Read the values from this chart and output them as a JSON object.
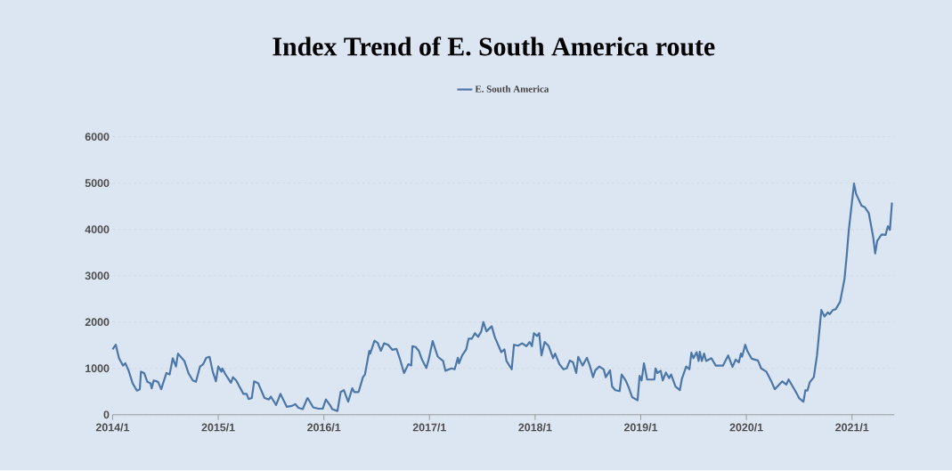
{
  "chart_data": {
    "type": "line",
    "title": "Index Trend of E. South America route",
    "x": [
      "2014-01-01",
      "2014-01-12",
      "2014-01-23",
      "2014-02-06",
      "2014-02-14",
      "2014-02-25",
      "2014-03-11",
      "2014-03-26",
      "2014-04-05",
      "2014-04-09",
      "2014-04-20",
      "2014-05-01",
      "2014-05-12",
      "2014-05-16",
      "2014-05-23",
      "2014-06-07",
      "2014-06-18",
      "2014-07-06",
      "2014-07-17",
      "2014-07-28",
      "2014-08-08",
      "2014-08-15",
      "2014-09-06",
      "2014-09-20",
      "2014-10-05",
      "2014-10-16",
      "2014-10-30",
      "2014-11-10",
      "2014-11-21",
      "2014-12-02",
      "2014-12-13",
      "2014-12-24",
      "2015-01-01",
      "2015-01-12",
      "2015-01-15",
      "2015-01-26",
      "2015-02-14",
      "2015-02-21",
      "2015-03-04",
      "2015-03-15",
      "2015-03-29",
      "2015-04-09",
      "2015-04-16",
      "2015-04-27",
      "2015-05-05",
      "2015-05-19",
      "2015-05-30",
      "2015-06-10",
      "2015-06-25",
      "2015-07-02",
      "2015-07-13",
      "2015-07-20",
      "2015-08-04",
      "2015-08-26",
      "2015-09-13",
      "2015-09-24",
      "2015-10-05",
      "2015-10-20",
      "2015-11-03",
      "2015-11-06",
      "2015-11-25",
      "2015-12-13",
      "2015-12-28",
      "2016-01-08",
      "2016-01-23",
      "2016-01-30",
      "2016-02-17",
      "2016-02-28",
      "2016-03-11",
      "2016-03-26",
      "2016-04-09",
      "2016-04-16",
      "2016-05-01",
      "2016-05-16",
      "2016-05-23",
      "2016-06-07",
      "2016-06-10",
      "2016-06-25",
      "2016-07-06",
      "2016-07-17",
      "2016-07-28",
      "2016-08-11",
      "2016-08-26",
      "2016-09-09",
      "2016-09-20",
      "2016-10-05",
      "2016-10-20",
      "2016-10-30",
      "2016-11-03",
      "2016-11-14",
      "2016-11-25",
      "2016-12-06",
      "2016-12-21",
      "2016-12-28",
      "2017-01-12",
      "2017-01-26",
      "2017-01-30",
      "2017-02-17",
      "2017-02-25",
      "2017-03-18",
      "2017-03-29",
      "2017-04-09",
      "2017-04-13",
      "2017-04-24",
      "2017-05-08",
      "2017-05-16",
      "2017-05-27",
      "2017-06-07",
      "2017-06-18",
      "2017-06-29",
      "2017-07-06",
      "2017-07-17",
      "2017-08-04",
      "2017-08-15",
      "2017-09-06",
      "2017-09-17",
      "2017-09-24",
      "2017-10-12",
      "2017-10-20",
      "2017-11-03",
      "2017-11-17",
      "2017-12-02",
      "2017-12-13",
      "2017-12-21",
      "2017-12-28",
      "2018-01-08",
      "2018-01-15",
      "2018-01-23",
      "2018-02-03",
      "2018-02-17",
      "2018-03-04",
      "2018-03-11",
      "2018-03-26",
      "2018-04-09",
      "2018-04-20",
      "2018-05-01",
      "2018-05-12",
      "2018-05-23",
      "2018-05-30",
      "2018-06-14",
      "2018-06-29",
      "2018-07-10",
      "2018-07-20",
      "2018-07-28",
      "2018-08-11",
      "2018-08-26",
      "2018-09-02",
      "2018-09-17",
      "2018-09-24",
      "2018-10-05",
      "2018-10-20",
      "2018-10-27",
      "2018-11-10",
      "2018-11-21",
      "2018-12-02",
      "2018-12-21",
      "2018-12-28",
      "2019-01-04",
      "2019-01-12",
      "2019-01-23",
      "2019-02-17",
      "2019-02-21",
      "2019-02-28",
      "2019-03-11",
      "2019-03-18",
      "2019-03-29",
      "2019-04-09",
      "2019-04-16",
      "2019-05-01",
      "2019-05-16",
      "2019-05-23",
      "2019-06-07",
      "2019-06-18",
      "2019-06-25",
      "2019-07-02",
      "2019-07-13",
      "2019-07-20",
      "2019-07-24",
      "2019-07-31",
      "2019-08-08",
      "2019-08-15",
      "2019-09-02",
      "2019-09-17",
      "2019-10-12",
      "2019-10-30",
      "2019-11-14",
      "2019-11-25",
      "2019-12-06",
      "2019-12-13",
      "2019-12-17",
      "2019-12-28",
      "2020-01-04",
      "2020-01-19",
      "2020-02-10",
      "2020-02-21",
      "2020-03-11",
      "2020-03-29",
      "2020-04-09",
      "2020-05-05",
      "2020-05-19",
      "2020-05-27",
      "2020-06-21",
      "2020-07-02",
      "2020-07-17",
      "2020-07-24",
      "2020-07-31",
      "2020-08-08",
      "2020-08-22",
      "2020-09-02",
      "2020-09-17",
      "2020-09-28",
      "2020-10-09",
      "2020-10-16",
      "2020-10-27",
      "2020-11-06",
      "2020-11-21",
      "2020-12-06",
      "2020-12-13",
      "2020-12-21",
      "2021-01-08",
      "2021-01-15",
      "2021-02-03",
      "2021-02-14",
      "2021-02-28",
      "2021-03-15",
      "2021-03-22",
      "2021-03-29",
      "2021-04-13",
      "2021-04-27",
      "2021-05-05",
      "2021-05-12",
      "2021-05-19"
    ],
    "series": [
      {
        "name": "E. South America",
        "color": "#4a76a8",
        "values": [
          1410,
          1510,
          1220,
          1060,
          1110,
          960,
          680,
          520,
          550,
          930,
          900,
          710,
          680,
          570,
          740,
          710,
          550,
          900,
          870,
          1220,
          1040,
          1320,
          1160,
          900,
          740,
          710,
          1040,
          1090,
          1230,
          1250,
          930,
          720,
          1040,
          930,
          1000,
          870,
          690,
          810,
          740,
          610,
          450,
          450,
          340,
          360,
          720,
          680,
          520,
          360,
          330,
          390,
          280,
          210,
          450,
          170,
          190,
          230,
          150,
          120,
          330,
          360,
          160,
          130,
          130,
          330,
          200,
          120,
          80,
          490,
          530,
          280,
          570,
          490,
          490,
          810,
          870,
          1380,
          1320,
          1600,
          1550,
          1380,
          1540,
          1510,
          1400,
          1420,
          1220,
          900,
          1090,
          1060,
          1480,
          1460,
          1380,
          1190,
          1010,
          1160,
          1590,
          1320,
          1250,
          1160,
          950,
          1000,
          980,
          1230,
          1110,
          1280,
          1410,
          1640,
          1640,
          1760,
          1680,
          1800,
          2000,
          1800,
          1910,
          1670,
          1350,
          1410,
          1160,
          980,
          1510,
          1490,
          1540,
          1480,
          1570,
          1480,
          1760,
          1700,
          1760,
          1280,
          1570,
          1480,
          1220,
          1320,
          1090,
          980,
          1000,
          1170,
          1130,
          900,
          1250,
          1060,
          1230,
          1040,
          810,
          960,
          1040,
          980,
          810,
          960,
          610,
          530,
          510,
          870,
          740,
          580,
          380,
          310,
          840,
          740,
          1110,
          760,
          760,
          1000,
          900,
          950,
          740,
          910,
          790,
          870,
          610,
          530,
          770,
          1040,
          980,
          1340,
          1220,
          1350,
          1160,
          1360,
          1160,
          1320,
          1160,
          1220,
          1060,
          1060,
          1280,
          1030,
          1190,
          1130,
          1320,
          1250,
          1510,
          1380,
          1210,
          1170,
          1000,
          930,
          710,
          550,
          720,
          650,
          760,
          490,
          360,
          280,
          530,
          520,
          700,
          810,
          1280,
          2260,
          2120,
          2210,
          2170,
          2260,
          2280,
          2440,
          2930,
          3390,
          3990,
          4990,
          4770,
          4510,
          4480,
          4350,
          3840,
          3480,
          3750,
          3890,
          3880,
          4070,
          3990,
          4580
        ]
      }
    ],
    "xlim": [
      "2014-01-01",
      "2021-05-27"
    ],
    "xticks": [
      {
        "value": "2014-01-01",
        "label": "2014/1"
      },
      {
        "value": "2015-01-01",
        "label": "2015/1"
      },
      {
        "value": "2016-01-01",
        "label": "2016/1"
      },
      {
        "value": "2017-01-01",
        "label": "2017/1"
      },
      {
        "value": "2018-01-01",
        "label": "2018/1"
      },
      {
        "value": "2019-01-01",
        "label": "2019/1"
      },
      {
        "value": "2020-01-01",
        "label": "2020/1"
      },
      {
        "value": "2021-01-01",
        "label": "2021/1"
      }
    ],
    "ylim": [
      0,
      6000
    ],
    "yticks": [
      0,
      1000,
      2000,
      3000,
      4000,
      5000,
      6000
    ],
    "grid": "y",
    "legend": "top",
    "marker": "none",
    "line_style": "solid"
  }
}
